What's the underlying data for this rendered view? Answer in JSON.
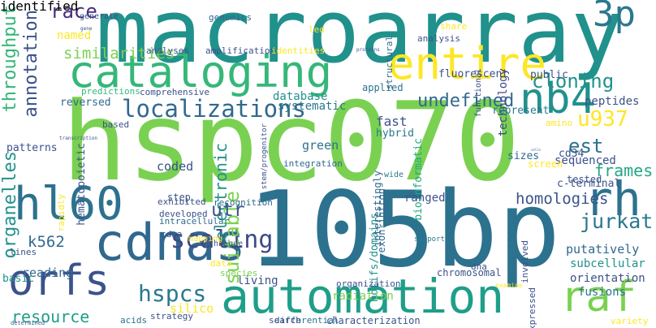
{
  "words": [
    {
      "text": "hspc070",
      "color": "#7ad151"
    },
    {
      "text": "105bp",
      "color": "#2c728e"
    },
    {
      "text": "macroarray",
      "color": "#21918c"
    },
    {
      "text": "cataloging",
      "color": "#35b779"
    },
    {
      "text": "entire",
      "color": "#fde725"
    },
    {
      "text": "automation",
      "color": "#1f9e89"
    },
    {
      "text": "cdnas",
      "color": "#31688e"
    },
    {
      "text": "orfs",
      "color": "#3b528b"
    },
    {
      "text": "hl60",
      "color": "#2c728e"
    },
    {
      "text": "rh",
      "color": "#2c728e"
    },
    {
      "text": "raf",
      "color": "#7ad151"
    },
    {
      "text": "nb4",
      "color": "#21918c"
    },
    {
      "text": "3p",
      "color": "#2a788e"
    },
    {
      "text": "localizations",
      "color": "#31688e"
    },
    {
      "text": "throughput",
      "color": "#35b779"
    },
    {
      "text": "annotation",
      "color": "#3b528b"
    },
    {
      "text": "organelles",
      "color": "#21918c"
    },
    {
      "text": "cloning",
      "color": "#21918c"
    },
    {
      "text": "undefined",
      "color": "#31688e"
    },
    {
      "text": "scaling",
      "color": "#3e4989"
    },
    {
      "text": "hspcs",
      "color": "#2a788e"
    },
    {
      "text": "resource",
      "color": "#1f9e89"
    },
    {
      "text": "race",
      "color": "#472d7b"
    },
    {
      "text": "u937",
      "color": "#fde725"
    },
    {
      "text": "est",
      "color": "#2c728e"
    },
    {
      "text": "frames",
      "color": "#22a884"
    },
    {
      "text": "homologies",
      "color": "#3b528b"
    },
    {
      "text": "jurkat",
      "color": "#2a788e"
    },
    {
      "text": "electronic",
      "color": "#21918c"
    },
    {
      "text": "suitable",
      "color": "#7ad151"
    },
    {
      "text": "utr",
      "color": "#3b528b"
    },
    {
      "text": "k562",
      "color": "#31688e"
    },
    {
      "text": "similarities",
      "color": "#7ad151"
    },
    {
      "text": "named",
      "color": "#fde725"
    },
    {
      "text": "technology",
      "color": "#3e4989"
    },
    {
      "text": "exon-intron",
      "color": "#31688e"
    },
    {
      "text": "bioinformatic",
      "color": "#22a884"
    },
    {
      "text": "database",
      "color": "#21918c"
    },
    {
      "text": "systematic",
      "color": "#2a788e"
    },
    {
      "text": "public",
      "color": "#3b528b"
    },
    {
      "text": "putatively",
      "color": "#31688e"
    },
    {
      "text": "motifs/domains",
      "color": "#21918c"
    },
    {
      "text": "subcellular",
      "color": "#21918c"
    },
    {
      "text": "orientation",
      "color": "#3b528b"
    },
    {
      "text": "fusions",
      "color": "#2c728e"
    },
    {
      "text": "radiation",
      "color": "#7ad151"
    },
    {
      "text": "characterization",
      "color": "#3b528b"
    },
    {
      "text": "differential",
      "color": "#2c728e"
    },
    {
      "text": "search",
      "color": "#3e4989"
    },
    {
      "text": "chromosomal",
      "color": "#3b528b"
    },
    {
      "text": "living",
      "color": "#3b528b"
    },
    {
      "text": "reading",
      "color": "#31688e"
    },
    {
      "text": "fast",
      "color": "#3b528b"
    },
    {
      "text": "green",
      "color": "#2c728e"
    },
    {
      "text": "hybrid",
      "color": "#2a788e"
    },
    {
      "text": "cd34",
      "color": "#3b528b"
    },
    {
      "text": "coded",
      "color": "#3b528b"
    },
    {
      "text": "ranged",
      "color": "#3b528b"
    },
    {
      "text": "silico",
      "color": "#fde725"
    },
    {
      "text": "basic",
      "color": "#21918c"
    },
    {
      "text": "reversed",
      "color": "#31688e"
    },
    {
      "text": "patterns",
      "color": "#3b528b"
    },
    {
      "text": "sizes",
      "color": "#31688e"
    },
    {
      "text": "sequenced",
      "color": "#3b528b"
    },
    {
      "text": "tested",
      "color": "#3b528b"
    },
    {
      "text": "c-terminal",
      "color": "#3b528b"
    },
    {
      "text": "amino",
      "color": "#fde725"
    },
    {
      "text": "peptides",
      "color": "#3b528b"
    },
    {
      "text": "represent",
      "color": "#2a788e"
    },
    {
      "text": "applied",
      "color": "#2c728e"
    },
    {
      "text": "fluorescent",
      "color": "#3b528b"
    },
    {
      "text": "genomics",
      "color": "#31688e"
    },
    {
      "text": "amplification",
      "color": "#3b528b"
    },
    {
      "text": "analyses",
      "color": "#3b528b"
    },
    {
      "text": "generate",
      "color": "#3b528b"
    },
    {
      "text": "gene",
      "color": "#3b528b"
    },
    {
      "text": "led",
      "color": "#fde725"
    },
    {
      "text": "identities",
      "color": "#fde725"
    },
    {
      "text": "proteins",
      "color": "#3b528b"
    },
    {
      "text": "structural",
      "color": "#31688e"
    },
    {
      "text": "share",
      "color": "#fde725"
    },
    {
      "text": "analysis",
      "color": "#3b528b"
    },
    {
      "text": "functional",
      "color": "#3b528b"
    },
    {
      "text": "predictions",
      "color": "#35b779"
    },
    {
      "text": "comprehensive",
      "color": "#3b528b"
    },
    {
      "text": "based",
      "color": "#3b528b"
    },
    {
      "text": "transcription",
      "color": "#3b528b"
    },
    {
      "text": "hematopoietic",
      "color": "#3b528b"
    },
    {
      "text": "step",
      "color": "#3b528b"
    },
    {
      "text": "integration",
      "color": "#31688e"
    },
    {
      "text": "stem/progenitor",
      "color": "#3b528b"
    },
    {
      "text": "interestingly",
      "color": "#31688e"
    },
    {
      "text": "wide",
      "color": "#2a788e"
    },
    {
      "text": "established",
      "color": "#2a788e"
    },
    {
      "text": "screen",
      "color": "#fde725"
    },
    {
      "text": "cells",
      "color": "#3b528b"
    },
    {
      "text": "recognition",
      "color": "#31688e"
    },
    {
      "text": "exhibited",
      "color": "#3b528b"
    },
    {
      "text": "developed",
      "color": "#3b528b"
    },
    {
      "text": "rapidly",
      "color": "#fde725"
    },
    {
      "text": "intracellular",
      "color": "#31688e"
    },
    {
      "text": "cdna",
      "color": "#3b528b"
    },
    {
      "text": "lines",
      "color": "#3b528b"
    },
    {
      "text": "technique",
      "color": "#3b528b"
    },
    {
      "text": "data",
      "color": "#fde725"
    },
    {
      "text": "species",
      "color": "#7ad151"
    },
    {
      "text": "mapping",
      "color": "#fde725"
    },
    {
      "text": "dna",
      "color": "#3b528b"
    },
    {
      "text": "support",
      "color": "#2a788e"
    },
    {
      "text": "involved",
      "color": "#3b528b"
    },
    {
      "text": "organization",
      "color": "#3b528b"
    },
    {
      "text": "examine",
      "color": "#fde725"
    },
    {
      "text": "expressed",
      "color": "#3b528b"
    },
    {
      "text": "acids",
      "color": "#2c728e"
    },
    {
      "text": "strategy",
      "color": "#3b528b"
    },
    {
      "text": "variety",
      "color": "#fde725"
    },
    {
      "text": "determined",
      "color": "#3b528b"
    },
    {
      "text": "identified",
      "color": "#3b528b"
    }
  ]
}
